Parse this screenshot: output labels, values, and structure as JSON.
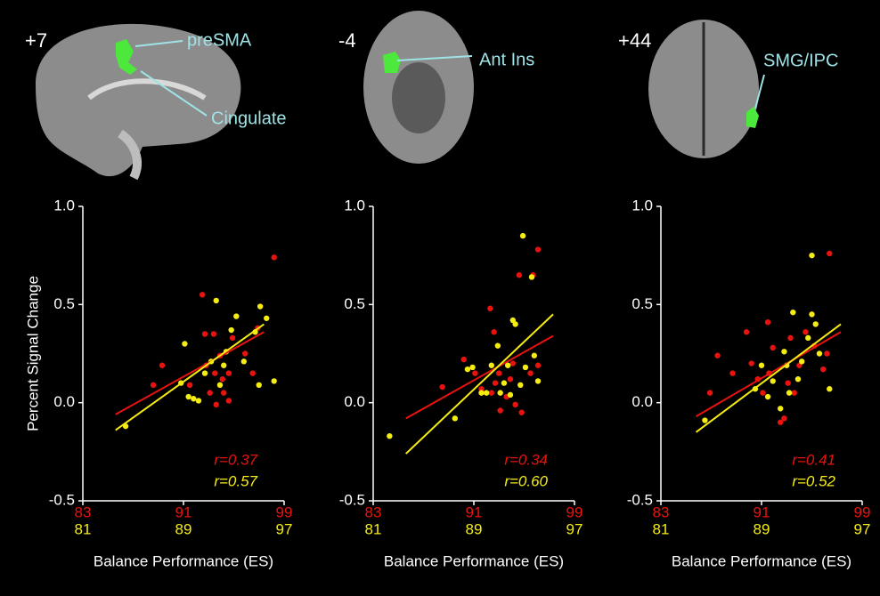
{
  "brain_images": [
    {
      "slice": "+7",
      "regions": [
        "preSMA",
        "Cingulate"
      ]
    },
    {
      "slice": "-4",
      "regions": [
        "Ant Ins"
      ]
    },
    {
      "slice": "+44",
      "regions": [
        "SMG/IPC"
      ]
    }
  ],
  "chart_data": [
    {
      "type": "scatter",
      "ylabel": "Percent Signal Change",
      "xlabel": "Balance Performance (ES)",
      "xlim": [
        83,
        99
      ],
      "xticks": [
        83,
        91,
        99
      ],
      "x2lim": [
        81,
        97
      ],
      "x2ticks": [
        81,
        89,
        97
      ],
      "ylim": [
        -0.5,
        1
      ],
      "yticks": [
        {
          "value": 1,
          "label": "1.0"
        },
        {
          "value": 0.5,
          "label": "0.5"
        },
        {
          "value": 0,
          "label": "0.0"
        },
        {
          "value": -0.5,
          "label": "-0.5"
        }
      ],
      "grid": false,
      "series": [
        {
          "color": "#e8130f",
          "r_label": "r=0.37",
          "x": [
            88.6,
            89.3,
            91.5,
            92.5,
            92.7,
            92.8,
            93.1,
            93.4,
            93.5,
            93.6,
            93.9,
            94.1,
            94.2,
            94.6,
            94.9,
            94.6,
            95.9,
            96.5,
            96.9,
            98.2
          ],
          "values": [
            0.09,
            0.19,
            0.09,
            0.55,
            0.35,
            0.19,
            0.05,
            0.35,
            0.15,
            -0.01,
            0.24,
            0.12,
            0.05,
            0.01,
            0.33,
            0.15,
            0.25,
            0.15,
            0.38,
            0.74
          ],
          "fit": {
            "x": [
              85.6,
              97.4
            ],
            "y": [
              -0.06,
              0.36
            ]
          }
        },
        {
          "color": "#f5ec12",
          "axis": "x2",
          "r_label": "r=0.57",
          "x": [
            84.4,
            88.8,
            89.1,
            89.4,
            89.8,
            90.2,
            90.7,
            91.2,
            91.6,
            91.9,
            92.2,
            92.4,
            92.8,
            93.2,
            93.8,
            94.7,
            95.1,
            95.6,
            95.0,
            96.2
          ],
          "values": [
            -0.12,
            0.1,
            0.3,
            0.03,
            0.02,
            0.01,
            0.15,
            0.21,
            0.52,
            0.09,
            0.19,
            0.26,
            0.37,
            0.44,
            0.21,
            0.36,
            0.49,
            0.43,
            0.09,
            0.11
          ],
          "fit": {
            "x": [
              83.6,
              95.4
            ],
            "y": [
              -0.14,
              0.4
            ]
          }
        }
      ]
    },
    {
      "type": "scatter",
      "xlabel": "Balance Performance (ES)",
      "xlim": [
        83,
        99
      ],
      "xticks": [
        83,
        91,
        99
      ],
      "x2lim": [
        81,
        97
      ],
      "x2ticks": [
        81,
        89,
        97
      ],
      "ylim": [
        -0.5,
        1
      ],
      "yticks": [
        {
          "value": 1,
          "label": "1.0"
        },
        {
          "value": 0.5,
          "label": "0.5"
        },
        {
          "value": 0,
          "label": "0.0"
        },
        {
          "value": -0.5,
          "label": "-0.5"
        }
      ],
      "grid": false,
      "series": [
        {
          "color": "#e8130f",
          "r_label": "r=0.34",
          "x": [
            88.5,
            90.2,
            91.1,
            91.6,
            92.3,
            92.6,
            92.4,
            92.7,
            93.0,
            93.1,
            93.6,
            93.9,
            94.1,
            94.3,
            94.8,
            94.6,
            95.7,
            96.1,
            96.1,
            95.5
          ],
          "values": [
            0.08,
            0.22,
            0.15,
            0.07,
            0.48,
            0.36,
            0.05,
            0.1,
            0.15,
            -0.04,
            0.03,
            0.12,
            0.2,
            -0.01,
            -0.05,
            0.65,
            0.65,
            0.78,
            0.19,
            0.15
          ],
          "fit": {
            "x": [
              85.6,
              97.3
            ],
            "y": [
              -0.08,
              0.34
            ]
          }
        },
        {
          "color": "#f5ec12",
          "axis": "x2",
          "r_label": "r=0.60",
          "x": [
            82.3,
            87.5,
            88.5,
            88.9,
            89.6,
            90.0,
            90.4,
            90.9,
            91.1,
            91.4,
            91.7,
            91.9,
            92.1,
            92.3,
            92.7,
            93.1,
            92.9,
            93.6,
            93.8,
            94.1
          ],
          "values": [
            -0.17,
            -0.08,
            0.17,
            0.18,
            0.05,
            0.05,
            0.19,
            0.29,
            0.05,
            0.1,
            0.19,
            0.04,
            0.42,
            0.4,
            0.09,
            0.18,
            0.85,
            0.64,
            0.24,
            0.11
          ],
          "fit": {
            "x": [
              83.6,
              95.3
            ],
            "y": [
              -0.26,
              0.45
            ]
          }
        }
      ]
    },
    {
      "type": "scatter",
      "xlabel": "Balance Performance (ES)",
      "xlim": [
        83,
        99
      ],
      "xticks": [
        83,
        91,
        99
      ],
      "x2lim": [
        81,
        97
      ],
      "x2ticks": [
        81,
        89,
        97
      ],
      "ylim": [
        -0.5,
        1
      ],
      "yticks": [
        {
          "value": 1,
          "label": "1.0"
        },
        {
          "value": 0.5,
          "label": "0.5"
        },
        {
          "value": 0,
          "label": "0.0"
        },
        {
          "value": -0.5,
          "label": "-0.5"
        }
      ],
      "grid": false,
      "series": [
        {
          "color": "#e8130f",
          "r_label": "r=0.41",
          "x": [
            86.9,
            87.5,
            88.7,
            89.8,
            90.2,
            90.7,
            91.1,
            91.5,
            91.6,
            91.9,
            92.5,
            92.8,
            93.1,
            93.3,
            93.6,
            94.0,
            94.5,
            95.2,
            95.9,
            96.4,
            96.2
          ],
          "values": [
            0.05,
            0.24,
            0.15,
            0.36,
            0.2,
            0.12,
            0.05,
            0.41,
            0.15,
            0.28,
            -0.1,
            -0.08,
            0.1,
            0.33,
            0.05,
            0.19,
            0.36,
            0.29,
            0.17,
            0.76,
            0.25
          ],
          "fit": {
            "x": [
              85.8,
              97.3
            ],
            "y": [
              -0.07,
              0.36
            ]
          }
        },
        {
          "color": "#f5ec12",
          "axis": "x2",
          "r_label": "r=0.52",
          "x": [
            84.5,
            88.5,
            89.0,
            89.5,
            89.9,
            90.5,
            90.8,
            91.0,
            91.5,
            91.9,
            92.2,
            92.7,
            93.0,
            93.3,
            93.6,
            93.0,
            94.4,
            91.2
          ],
          "values": [
            -0.09,
            0.07,
            0.19,
            0.03,
            0.11,
            -0.03,
            0.26,
            0.19,
            0.46,
            0.12,
            0.21,
            0.33,
            0.45,
            0.4,
            0.25,
            0.75,
            0.07,
            0.05
          ],
          "fit": {
            "x": [
              83.8,
              95.3
            ],
            "y": [
              -0.15,
              0.4
            ]
          }
        }
      ]
    }
  ]
}
